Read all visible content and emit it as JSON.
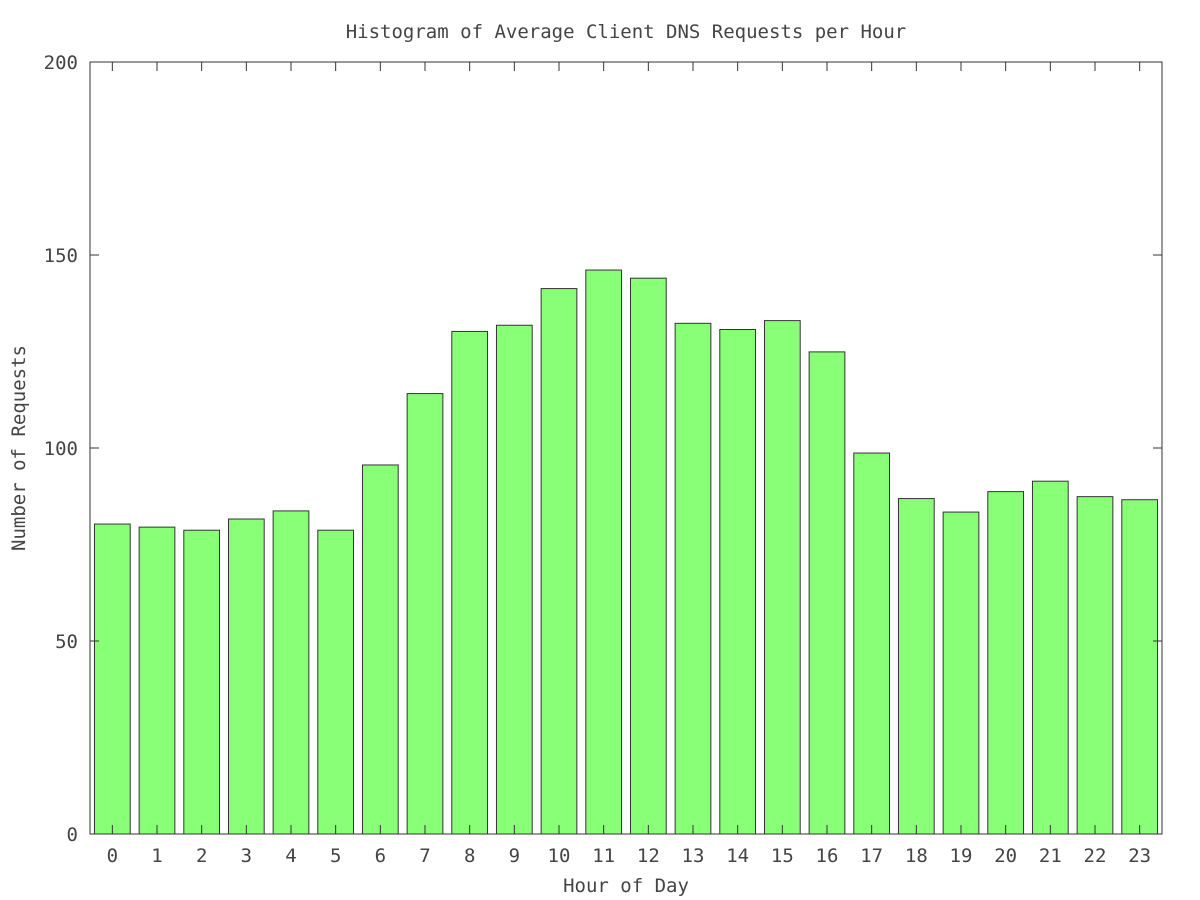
{
  "chart_data": {
    "type": "bar",
    "title": "Histogram of Average Client DNS Requests per Hour",
    "xlabel": "Hour of Day",
    "ylabel": "Number of Requests",
    "categories": [
      "0",
      "1",
      "2",
      "3",
      "4",
      "5",
      "6",
      "7",
      "8",
      "9",
      "10",
      "11",
      "12",
      "13",
      "14",
      "15",
      "16",
      "17",
      "18",
      "19",
      "20",
      "21",
      "22",
      "23"
    ],
    "values": [
      80.3,
      79.5,
      78.7,
      81.6,
      83.7,
      78.7,
      95.6,
      114.1,
      130.2,
      131.8,
      141.3,
      146.1,
      144.0,
      132.3,
      130.7,
      133.0,
      124.9,
      98.7,
      86.9,
      83.4,
      88.7,
      91.4,
      87.4,
      86.6
    ],
    "ylim": [
      0,
      200
    ],
    "yticks": [
      0,
      50,
      100,
      150,
      200
    ],
    "grid": false,
    "colors": {
      "bar_fill": "#88ff77",
      "bar_stroke": "#333333",
      "axis": "#333333",
      "text": "#444444"
    }
  }
}
